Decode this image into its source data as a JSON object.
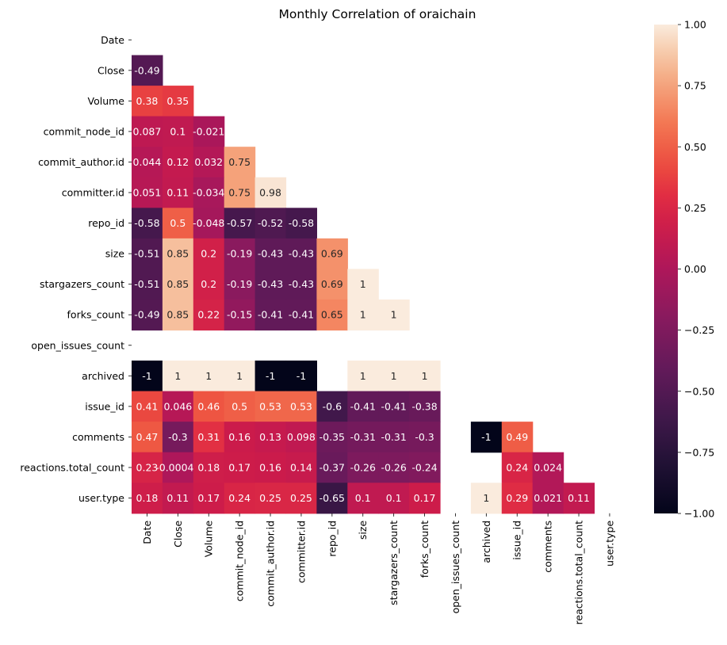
{
  "chart_data": {
    "type": "heatmap",
    "title": "Monthly Correlation of oraichain",
    "xlabel": "",
    "ylabel": "",
    "labels": [
      "Date",
      "Close",
      "Volume",
      "commit_node_id",
      "commit_author.id",
      "committer.id",
      "repo_id",
      "size",
      "stargazers_count",
      "forks_count",
      "open_issues_count",
      "archived",
      "issue_id",
      "comments",
      "reactions.total_count",
      "user.type"
    ],
    "mask": "upper-triangle-including-diagonal",
    "values": [
      [
        null,
        null,
        null,
        null,
        null,
        null,
        null,
        null,
        null,
        null,
        null,
        null,
        null,
        null,
        null,
        null
      ],
      [
        -0.49,
        null,
        null,
        null,
        null,
        null,
        null,
        null,
        null,
        null,
        null,
        null,
        null,
        null,
        null,
        null
      ],
      [
        0.38,
        0.35,
        null,
        null,
        null,
        null,
        null,
        null,
        null,
        null,
        null,
        null,
        null,
        null,
        null,
        null
      ],
      [
        0.087,
        0.1,
        -0.021,
        null,
        null,
        null,
        null,
        null,
        null,
        null,
        null,
        null,
        null,
        null,
        null,
        null
      ],
      [
        0.044,
        0.12,
        0.032,
        0.75,
        null,
        null,
        null,
        null,
        null,
        null,
        null,
        null,
        null,
        null,
        null,
        null
      ],
      [
        0.051,
        0.11,
        -0.034,
        0.75,
        0.98,
        null,
        null,
        null,
        null,
        null,
        null,
        null,
        null,
        null,
        null,
        null
      ],
      [
        -0.58,
        0.5,
        -0.048,
        -0.57,
        -0.52,
        -0.58,
        null,
        null,
        null,
        null,
        null,
        null,
        null,
        null,
        null,
        null
      ],
      [
        -0.51,
        0.85,
        0.2,
        -0.19,
        -0.43,
        -0.43,
        0.69,
        null,
        null,
        null,
        null,
        null,
        null,
        null,
        null,
        null
      ],
      [
        -0.51,
        0.85,
        0.2,
        -0.19,
        -0.43,
        -0.43,
        0.69,
        1,
        null,
        null,
        null,
        null,
        null,
        null,
        null,
        null
      ],
      [
        -0.49,
        0.85,
        0.22,
        -0.15,
        -0.41,
        -0.41,
        0.65,
        1,
        1,
        null,
        null,
        null,
        null,
        null,
        null,
        null
      ],
      [
        null,
        null,
        null,
        null,
        null,
        null,
        null,
        null,
        null,
        null,
        null,
        null,
        null,
        null,
        null,
        null
      ],
      [
        -1,
        1,
        1,
        1,
        -1,
        -1,
        null,
        1,
        1,
        1,
        null,
        null,
        null,
        null,
        null,
        null
      ],
      [
        0.41,
        0.046,
        0.46,
        0.5,
        0.53,
        0.53,
        -0.6,
        -0.41,
        -0.41,
        -0.38,
        null,
        null,
        null,
        null,
        null,
        null
      ],
      [
        0.47,
        -0.3,
        0.31,
        0.16,
        0.13,
        0.098,
        -0.35,
        -0.31,
        -0.31,
        -0.3,
        null,
        -1,
        0.49,
        null,
        null,
        null
      ],
      [
        0.23,
        -0.00043,
        0.18,
        0.17,
        0.16,
        0.14,
        -0.37,
        -0.26,
        -0.26,
        -0.24,
        null,
        null,
        0.24,
        0.024,
        null,
        null
      ],
      [
        0.18,
        0.11,
        0.17,
        0.24,
        0.25,
        0.25,
        -0.65,
        0.1,
        0.1,
        0.17,
        null,
        1,
        0.29,
        0.021,
        0.11,
        null
      ]
    ],
    "colorbar": {
      "colormap": "rocket",
      "range": [
        -1,
        1
      ],
      "ticks": [
        "1.00",
        "0.75",
        "0.50",
        "0.25",
        "0.00",
        "−0.25",
        "−0.50",
        "−0.75",
        "−1.00"
      ],
      "tick_values": [
        1,
        0.75,
        0.5,
        0.25,
        0,
        -0.25,
        -0.5,
        -0.75,
        -1
      ]
    },
    "legend": "right"
  }
}
